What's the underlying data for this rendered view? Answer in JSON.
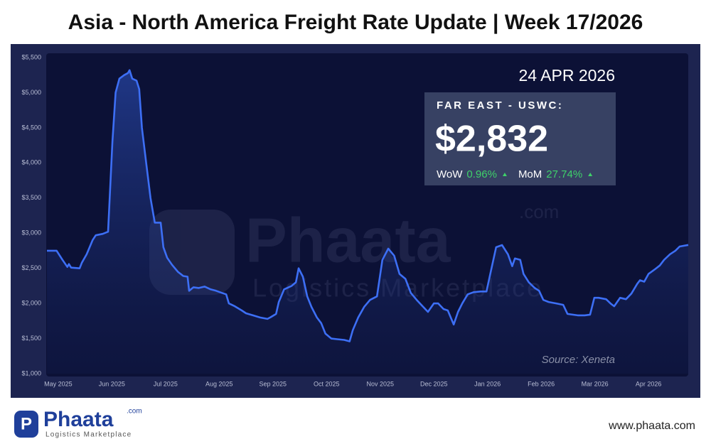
{
  "chart_data": {
    "type": "line",
    "title": "Asia - North America Freight Rate Update | Week 17/2026",
    "date": "24 APR 2026",
    "source": "Source: Xeneta",
    "callout": {
      "title": "FAR EAST - USWC:",
      "value": 2832,
      "value_label": "$2,832",
      "changes": [
        {
          "name": "WoW",
          "value": 0.96,
          "value_label": "0.96%"
        },
        {
          "name": "MoM",
          "value": 27.74,
          "value_label": "27.74%"
        }
      ]
    },
    "color": "#3d6ff5",
    "x": [
      -0.21,
      -0.03,
      0.08,
      0.17,
      0.2,
      0.24,
      0.4,
      0.44,
      0.53,
      0.64,
      0.7,
      0.83,
      0.93,
      1.01,
      1.07,
      1.14,
      1.23,
      1.3,
      1.33,
      1.38,
      1.46,
      1.51,
      1.56,
      1.64,
      1.72,
      1.8,
      1.91,
      1.96,
      2.03,
      2.12,
      2.23,
      2.33,
      2.41,
      2.44,
      2.52,
      2.62,
      2.73,
      2.84,
      2.94,
      3.05,
      3.13,
      3.18,
      3.29,
      3.42,
      3.5,
      3.63,
      3.76,
      3.9,
      3.95,
      4.06,
      4.11,
      4.21,
      4.35,
      4.43,
      4.48,
      4.56,
      4.64,
      4.72,
      4.82,
      4.9,
      4.98,
      5.09,
      5.2,
      5.33,
      5.43,
      5.49,
      5.59,
      5.7,
      5.81,
      5.94,
      6.04,
      6.15,
      6.26,
      6.36,
      6.47,
      6.57,
      6.68,
      6.79,
      6.89,
      7.0,
      7.08,
      7.18,
      7.26,
      7.37,
      7.45,
      7.53,
      7.63,
      7.74,
      7.87,
      7.98,
      8.06,
      8.16,
      8.27,
      8.38,
      8.46,
      8.51,
      8.61,
      8.67,
      8.77,
      8.88,
      8.96,
      9.04,
      9.14,
      9.28,
      9.41,
      9.49,
      9.68,
      9.81,
      9.91,
      9.99,
      10.07,
      10.21,
      10.29,
      10.36,
      10.47,
      10.58,
      10.68,
      10.79,
      10.84,
      10.92,
      11.0,
      11.11,
      11.21,
      11.29,
      11.4,
      11.5,
      11.58,
      11.74
    ],
    "values": [
      2750,
      2750,
      2620,
      2520,
      2560,
      2510,
      2500,
      2580,
      2700,
      2900,
      2970,
      2990,
      3020,
      4300,
      5000,
      5200,
      5250,
      5280,
      5320,
      5200,
      5170,
      5050,
      4500,
      4000,
      3500,
      3150,
      3150,
      2800,
      2650,
      2550,
      2450,
      2390,
      2380,
      2180,
      2230,
      2220,
      2240,
      2200,
      2180,
      2150,
      2130,
      2000,
      1960,
      1900,
      1860,
      1830,
      1800,
      1780,
      1800,
      1850,
      2020,
      2200,
      2250,
      2300,
      2500,
      2380,
      2100,
      1950,
      1800,
      1720,
      1570,
      1500,
      1490,
      1480,
      1460,
      1620,
      1800,
      1950,
      2050,
      2100,
      2620,
      2780,
      2680,
      2420,
      2350,
      2150,
      2050,
      1960,
      1880,
      2000,
      2000,
      1920,
      1900,
      1700,
      1880,
      2000,
      2130,
      2160,
      2170,
      2170,
      2450,
      2800,
      2830,
      2700,
      2530,
      2640,
      2620,
      2420,
      2300,
      2220,
      2180,
      2050,
      2020,
      2000,
      1980,
      1850,
      1830,
      1830,
      1840,
      2080,
      2080,
      2060,
      2000,
      1960,
      2080,
      2060,
      2140,
      2280,
      2330,
      2310,
      2420,
      2480,
      2540,
      2620,
      2700,
      2750,
      2810,
      2832
    ],
    "xlim": [
      -0.21,
      11.74
    ],
    "xticks": [
      {
        "value": 0,
        "label": "May 2025"
      },
      {
        "value": 1,
        "label": "Jun 2025"
      },
      {
        "value": 2,
        "label": "Jul 2025"
      },
      {
        "value": 3,
        "label": "Aug 2025"
      },
      {
        "value": 4,
        "label": "Sep 2025"
      },
      {
        "value": 5,
        "label": "Oct 2025"
      },
      {
        "value": 6,
        "label": "Nov 2025"
      },
      {
        "value": 7,
        "label": "Dec 2025"
      },
      {
        "value": 8,
        "label": "Jan 2026"
      },
      {
        "value": 9,
        "label": "Feb 2026"
      },
      {
        "value": 10,
        "label": "Mar 2026"
      },
      {
        "value": 11,
        "label": "Apr 2026"
      }
    ],
    "ylim": [
      1000,
      5500
    ],
    "yticks": [
      {
        "value": 1000,
        "label": "$1,000"
      },
      {
        "value": 1500,
        "label": "$1,500"
      },
      {
        "value": 2000,
        "label": "$2,000"
      },
      {
        "value": 2500,
        "label": "$2,500"
      },
      {
        "value": 3000,
        "label": "$3,000"
      },
      {
        "value": 3500,
        "label": "$3,500"
      },
      {
        "value": 4000,
        "label": "$4,000"
      },
      {
        "value": 4500,
        "label": "$4,500"
      },
      {
        "value": 5000,
        "label": "$5,000"
      },
      {
        "value": 5500,
        "label": "$5,500"
      }
    ]
  },
  "brand": {
    "name": "Phaata",
    "suffix": ".com",
    "tagline": "Logistics Marketplace"
  },
  "website": "www.phaata.com"
}
